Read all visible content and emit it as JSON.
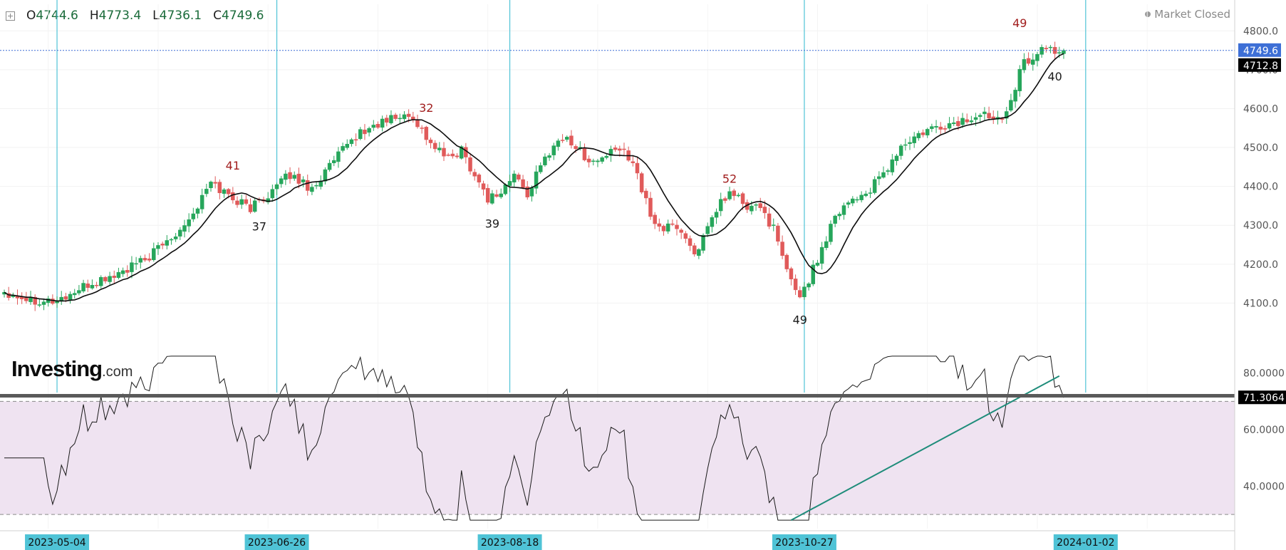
{
  "header": {
    "open_label": "O",
    "open": "4744.6",
    "high_label": "H",
    "high": "4773.4",
    "low_label": "L",
    "low": "4736.1",
    "close_label": "C",
    "close": "4749.6",
    "status": "Market Closed",
    "expand_icon": "plus-square-icon"
  },
  "logo": {
    "brand": "Investing",
    "suffix": ".com"
  },
  "colors": {
    "up": "#26a65b",
    "down": "#e05a5a",
    "ma": "#0d0d0d",
    "cycle_line": "#4fc3d6",
    "price_line": "#3d6fd6",
    "rsi_band": "#efe3f1",
    "trendline": "#1e8c7a",
    "peak_label": "#a11d1d",
    "trough_label": "#1a1a1a"
  },
  "chart_data": [
    {
      "type": "candlestick",
      "name": "Price",
      "ylim": [
        4000,
        4850
      ],
      "yticks": [
        4100,
        4200,
        4300,
        4400,
        4500,
        4600,
        4700,
        4800
      ],
      "x_dates": [
        "2023-05-04",
        "2023-06-26",
        "2023-08-18",
        "2023-10-27",
        "2024-01-02"
      ],
      "last_close": "4749.6",
      "ma_value": "4712.8",
      "keypoints": [
        [
          0,
          4130
        ],
        [
          6,
          4110
        ],
        [
          12,
          4105
        ],
        [
          20,
          4150
        ],
        [
          26,
          4175
        ],
        [
          32,
          4210
        ],
        [
          38,
          4270
        ],
        [
          43,
          4330
        ],
        [
          47,
          4410
        ],
        [
          52,
          4370
        ],
        [
          56,
          4345
        ],
        [
          60,
          4380
        ],
        [
          65,
          4430
        ],
        [
          70,
          4395
        ],
        [
          75,
          4465
        ],
        [
          80,
          4530
        ],
        [
          85,
          4560
        ],
        [
          89,
          4578
        ],
        [
          93,
          4580
        ],
        [
          97,
          4510
        ],
        [
          101,
          4470
        ],
        [
          104,
          4495
        ],
        [
          107,
          4430
        ],
        [
          110,
          4370
        ],
        [
          113,
          4385
        ],
        [
          116,
          4430
        ],
        [
          119,
          4380
        ],
        [
          122,
          4450
        ],
        [
          125,
          4510
        ],
        [
          128,
          4525
        ],
        [
          131,
          4490
        ],
        [
          134,
          4460
        ],
        [
          137,
          4480
        ],
        [
          140,
          4495
        ],
        [
          143,
          4470
        ],
        [
          147,
          4320
        ],
        [
          150,
          4290
        ],
        [
          153,
          4300
        ],
        [
          157,
          4230
        ],
        [
          160,
          4285
        ],
        [
          163,
          4360
        ],
        [
          166,
          4385
        ],
        [
          169,
          4340
        ],
        [
          172,
          4350
        ],
        [
          175,
          4290
        ],
        [
          178,
          4180
        ],
        [
          181,
          4120
        ],
        [
          183,
          4160
        ],
        [
          186,
          4240
        ],
        [
          189,
          4330
        ],
        [
          193,
          4370
        ],
        [
          196,
          4380
        ],
        [
          200,
          4430
        ],
        [
          204,
          4500
        ],
        [
          208,
          4530
        ],
        [
          212,
          4550
        ],
        [
          216,
          4560
        ],
        [
          220,
          4575
        ],
        [
          224,
          4585
        ],
        [
          227,
          4580
        ],
        [
          229,
          4630
        ],
        [
          232,
          4720
        ],
        [
          235,
          4740
        ],
        [
          237,
          4760
        ],
        [
          239,
          4740
        ],
        [
          241,
          4749.6
        ]
      ],
      "cycle_line_bars": [
        12,
        62,
        115,
        182,
        246
      ],
      "annotations": [
        {
          "text": "41",
          "bar": 52,
          "price": 4443,
          "kind": "peak"
        },
        {
          "text": "37",
          "bar": 58,
          "price": 4287,
          "kind": "trough"
        },
        {
          "text": "32",
          "bar": 96,
          "price": 4592,
          "kind": "peak"
        },
        {
          "text": "39",
          "bar": 111,
          "price": 4294,
          "kind": "trough"
        },
        {
          "text": "52",
          "bar": 165,
          "price": 4409,
          "kind": "peak"
        },
        {
          "text": "49",
          "bar": 181,
          "price": 4047,
          "kind": "trough"
        },
        {
          "text": "49",
          "bar": 231,
          "price": 4810,
          "kind": "peak"
        },
        {
          "text": "40",
          "bar": 239,
          "price": 4672,
          "kind": "trough"
        }
      ]
    },
    {
      "type": "line",
      "name": "RSI",
      "ylim": [
        25,
        88
      ],
      "yticks": [
        40,
        60,
        80
      ],
      "ytick_labels": [
        "40.0000",
        "60.0000",
        "80.0000"
      ],
      "band": [
        30,
        70
      ],
      "last_value": "71.3064",
      "trendline": {
        "from": {
          "bar": 179,
          "value": 28
        },
        "to": {
          "bar": 240,
          "value": 79
        }
      }
    }
  ],
  "x_axis_labels": [
    {
      "text": "2023-05-04",
      "bar": 12
    },
    {
      "text": "2023-06-26",
      "bar": 62
    },
    {
      "text": "2023-08-18",
      "bar": 115
    },
    {
      "text": "2023-10-27",
      "bar": 182
    },
    {
      "text": "2024-01-02",
      "bar": 246
    }
  ]
}
